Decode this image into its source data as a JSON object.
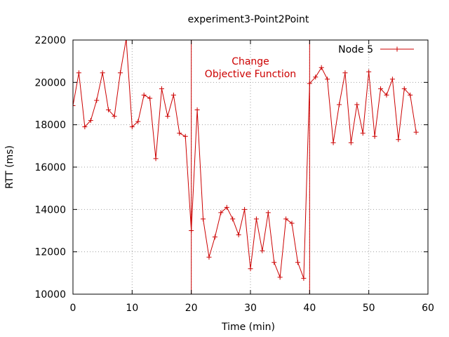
{
  "chart_data": {
    "type": "line",
    "title": "experiment3-Point2Point",
    "xlabel": "Time (min)",
    "ylabel": "RTT (ms)",
    "xlim": [
      0,
      60
    ],
    "ylim": [
      10000,
      22000
    ],
    "xticks": [
      0,
      10,
      20,
      30,
      40,
      50,
      60
    ],
    "yticks": [
      10000,
      12000,
      14000,
      16000,
      18000,
      20000,
      22000
    ],
    "grid": true,
    "legend_position": "top-right",
    "series": [
      {
        "name": "Node 5",
        "color": "#cc0000",
        "marker": "+",
        "x": [
          0,
          1,
          2,
          3,
          4,
          5,
          6,
          7,
          8,
          9,
          10,
          11,
          12,
          13,
          14,
          15,
          16,
          17,
          18,
          19,
          20,
          21,
          22,
          23,
          24,
          25,
          26,
          27,
          28,
          29,
          30,
          31,
          32,
          33,
          34,
          35,
          36,
          37,
          38,
          39,
          40,
          41,
          42,
          43,
          44,
          45,
          46,
          47,
          48,
          49,
          50,
          51,
          52,
          53,
          54,
          55,
          56,
          57,
          58
        ],
        "values": [
          18900,
          20450,
          17900,
          18200,
          19150,
          20450,
          18700,
          18400,
          20450,
          22050,
          17900,
          18150,
          19400,
          19250,
          16400,
          19700,
          18400,
          19400,
          17600,
          17450,
          13000,
          18700,
          13550,
          11750,
          12700,
          13850,
          14100,
          13550,
          12800,
          14000,
          11200,
          13550,
          12050,
          13850,
          11500,
          10800,
          13550,
          13350,
          11500,
          10750,
          19950,
          20250,
          20700,
          20150,
          17150,
          18950,
          20450,
          17150,
          18950,
          17600,
          20500,
          17450,
          19700,
          19400,
          20150,
          17300,
          19700,
          19400,
          17650
        ]
      }
    ],
    "vertical_lines": [
      20,
      40
    ],
    "annotation": {
      "lines": [
        "Change",
        "Objective Function"
      ],
      "x": 30,
      "color": "#cc0000"
    }
  }
}
